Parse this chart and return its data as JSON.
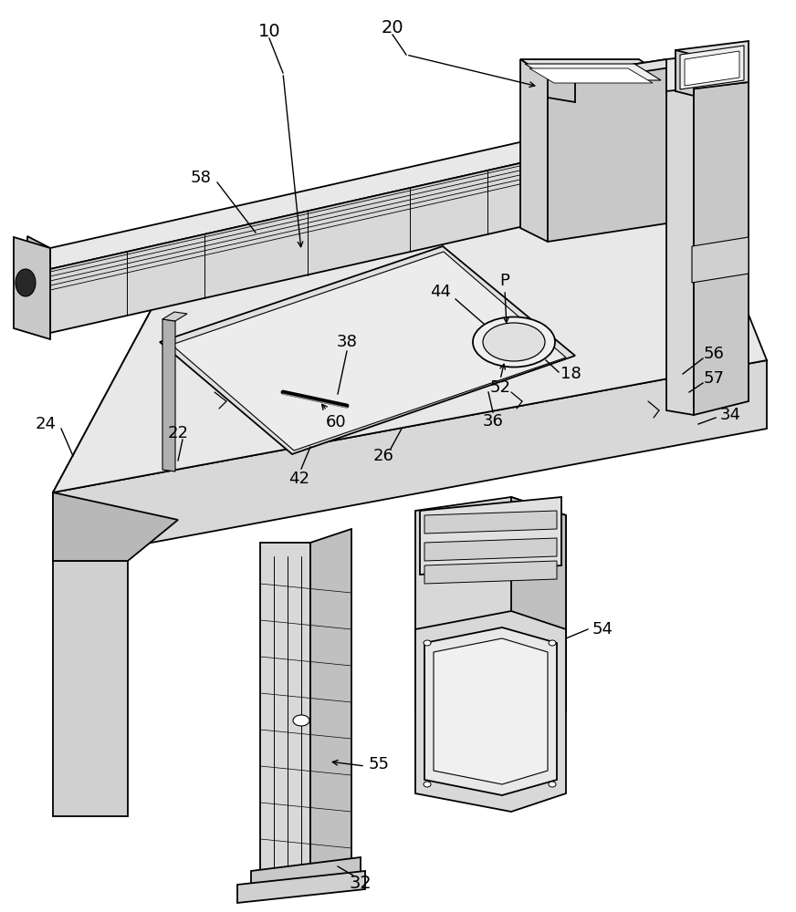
{
  "bg_color": "#ffffff",
  "lc": "#000000",
  "lw": 1.3,
  "fig_w": 8.72,
  "fig_h": 10.0,
  "dpi": 100
}
